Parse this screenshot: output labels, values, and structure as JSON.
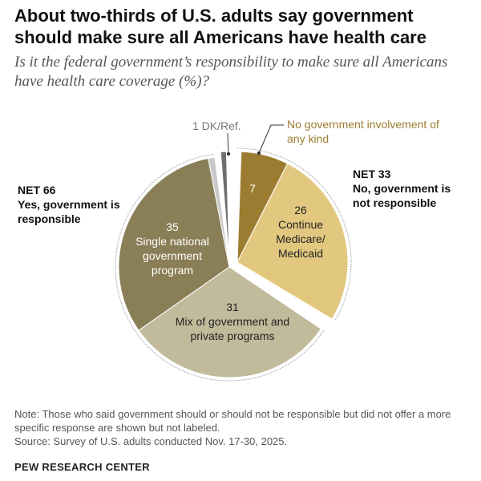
{
  "title": "About two-thirds of U.S. adults say government should make sure all Americans have health care",
  "subtitle": "Is it the federal government’s responsibility to make sure all Americans have health care coverage (%)?",
  "chart_data": {
    "type": "pie",
    "slices": [
      {
        "key": "no_involvement",
        "value": 7,
        "label": "7",
        "callout": "No government involvement of any kind",
        "group": "no",
        "color": "#9c7c30"
      },
      {
        "key": "continue",
        "value": 26,
        "label": "26",
        "text": "Continue Medicare/ Medicaid",
        "group": "no",
        "color": "#e2c87f"
      },
      {
        "key": "mix",
        "value": 31,
        "label": "31",
        "text": "Mix of government and private programs",
        "group": "yes",
        "color": "#c1ba9b"
      },
      {
        "key": "single",
        "value": 35,
        "label": "35",
        "text": "Single national government program",
        "group": "yes",
        "color": "#8a7e57"
      },
      {
        "key": "yes_unspecified",
        "value": 1,
        "label": "",
        "group": "yes",
        "color": "#c9c9c9"
      },
      {
        "key": "dk",
        "value": 1,
        "label": "1 DK/Ref.",
        "group": "dk",
        "color": "#6e6e6e"
      }
    ],
    "groups": {
      "yes": {
        "net": "NET 66",
        "text": "Yes, government is responsible"
      },
      "no": {
        "net": "NET 33",
        "text": "No, government is not responsible"
      }
    }
  },
  "note": "Note: Those who said government should or should not be responsible but did not offer a more specific response are shown but not labeled.",
  "source": "Source: Survey of U.S. adults conducted Nov. 17-30, 2025.",
  "brand": "PEW RESEARCH CENTER"
}
